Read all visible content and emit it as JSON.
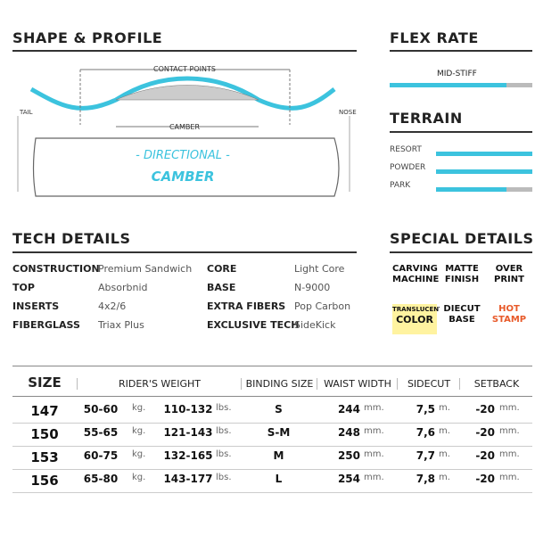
{
  "shape_profile": {
    "title": "SHAPE & PROFILE",
    "contact_points": "CONTACT POINTS",
    "camber_label": "CAMBER",
    "tail": "TAIL",
    "nose": "NOSE",
    "board_line1": "- DIRECTIONAL -",
    "board_line2": "CAMBER"
  },
  "flex_rate": {
    "title": "FLEX RATE",
    "level": "MID-STIFF"
  },
  "terrain": {
    "title": "TERRAIN",
    "items": [
      "RESORT",
      "POWDER",
      "PARK"
    ]
  },
  "tech_details": {
    "title": "TECH DETAILS",
    "rows": [
      [
        "CONSTRUCTION",
        "Premium Sandwich",
        "CORE",
        "Light Core"
      ],
      [
        "TOP",
        "Absorbnid",
        "BASE",
        "N-9000"
      ],
      [
        "INSERTS",
        "4x2/6",
        "EXTRA FIBERS",
        "Pop Carbon"
      ],
      [
        "FIBERGLASS",
        "Triax Plus",
        "EXCLUSIVE TECH",
        "SideKick"
      ]
    ]
  },
  "special_details": {
    "title": "SPECIAL DETAILS",
    "badges": [
      [
        "CARVING",
        "MACHINE"
      ],
      [
        "MATTE",
        "FINISH"
      ],
      [
        "OVER",
        "PRINT"
      ],
      [
        "TRANSLUCENT",
        "COLOR"
      ],
      [
        "DIECUT",
        "BASE"
      ],
      [
        "HOT",
        "STAMP"
      ]
    ]
  },
  "size_table": {
    "header": [
      "SIZE",
      "RIDER'S WEIGHT",
      "BINDING SIZE",
      "WAIST WIDTH",
      "SIDECUT",
      "SETBACK"
    ],
    "rows": [
      [
        "147",
        "50-60",
        "kg.",
        "110-132",
        "lbs.",
        "S",
        "244",
        "mm.",
        "7,5",
        "m.",
        "-20",
        "mm."
      ],
      [
        "150",
        "55-65",
        "kg.",
        "121-143",
        "lbs.",
        "S-M",
        "248",
        "mm.",
        "7,6",
        "m.",
        "-20",
        "mm."
      ],
      [
        "153",
        "60-75",
        "kg.",
        "132-165",
        "lbs.",
        "M",
        "250",
        "mm.",
        "7,7",
        "m.",
        "-20",
        "mm."
      ],
      [
        "156",
        "65-80",
        "kg.",
        "143-177",
        "lbs.",
        "L",
        "254",
        "mm.",
        "7,8",
        "m.",
        "-20",
        "mm."
      ]
    ]
  }
}
